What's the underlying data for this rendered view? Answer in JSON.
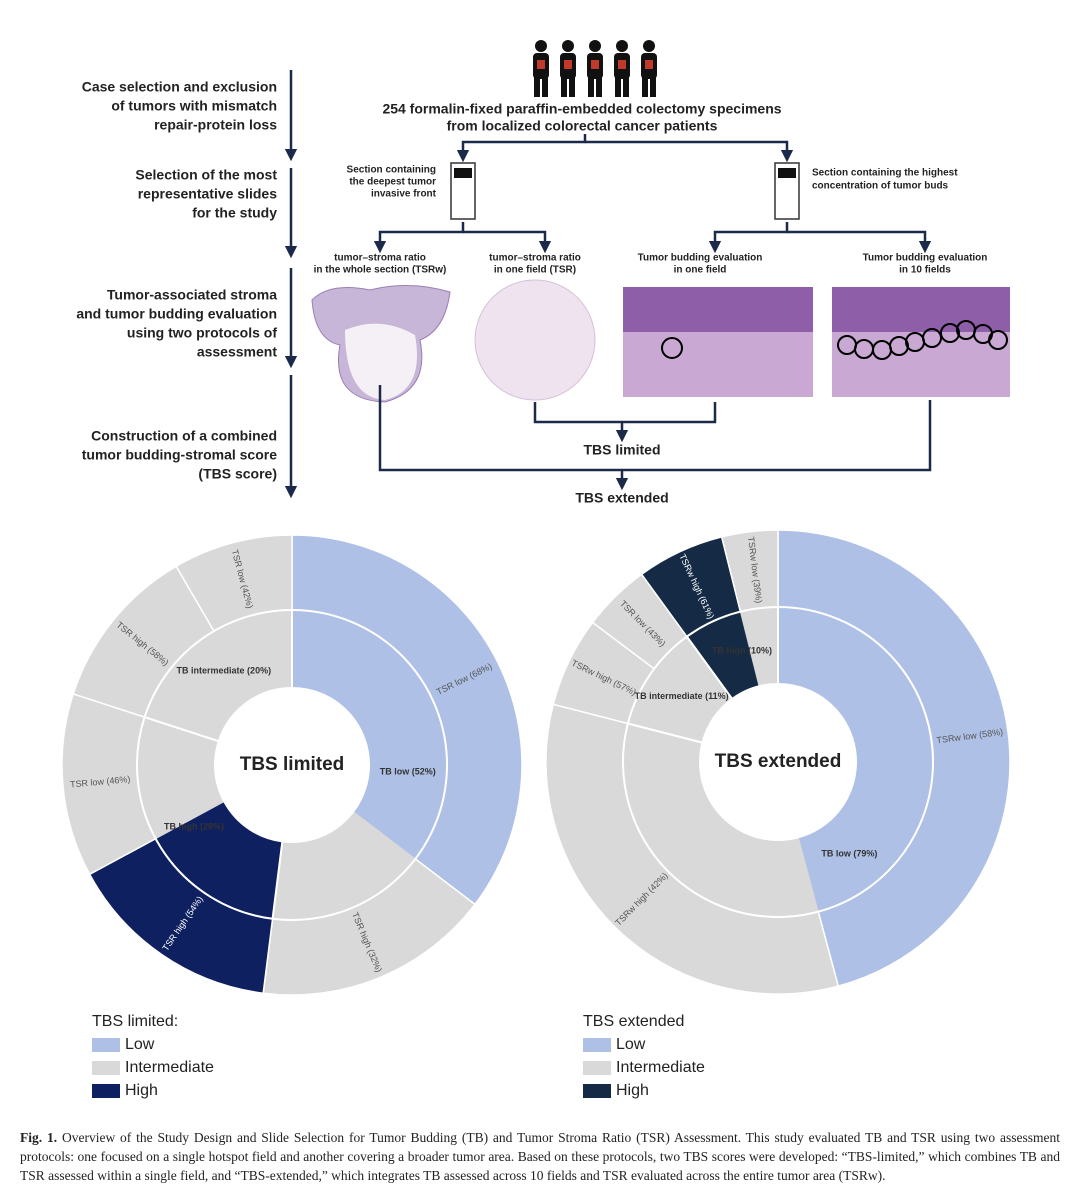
{
  "steps": [
    [
      "Case selection and exclusion",
      "of tumors with mismatch",
      "repair-protein loss"
    ],
    [
      "Selection of the most",
      "representative slides",
      "for the study"
    ],
    [
      "Tumor-associated stroma",
      "and tumor budding evaluation",
      "using two protocols of",
      "assessment"
    ],
    [
      "Construction of a combined",
      "tumor budding-stromal score",
      "(TBS score)"
    ]
  ],
  "cohort": [
    "254 formalin-fixed paraffin-embedded colectomy specimens",
    "from localized colorectal cancer patients"
  ],
  "sections": [
    [
      "Section containing",
      "the deepest tumor",
      "invasive front"
    ],
    [
      "Section containing the highest",
      "concentration of tumor buds"
    ]
  ],
  "evaluations": [
    [
      "tumor–stroma ratio",
      "in the whole section (TSRw)"
    ],
    [
      "tumor–stroma ratio",
      "in one field (TSR)"
    ],
    [
      "Tumor budding evaluation",
      "in one field"
    ],
    [
      "Tumor budding evaluation",
      "in 10 fields"
    ]
  ],
  "scores": [
    "TBS limited",
    "TBS extended"
  ],
  "chart_data": [
    {
      "type": "sunburst",
      "center_label": "TBS limited",
      "values": [
        52,
        28,
        20
      ],
      "value_labels": [
        "TB low (52%)",
        "TB high (28%)",
        "TB intermediate (20%)"
      ],
      "children": [
        {
          "values": [
            68,
            32
          ],
          "value_labels": [
            "TSR low (68%)",
            "TSR high (32%)"
          ],
          "colors": [
            "#aec0e6",
            "#d9d9d9"
          ]
        },
        {
          "values": [
            54,
            46
          ],
          "value_labels": [
            "TSR high (54%)",
            "TSR low (46%)"
          ],
          "colors": [
            "#0f2060",
            "#d9d9d9"
          ]
        },
        {
          "values": [
            58,
            42
          ],
          "value_labels": [
            "TSR high (58%)",
            "TSR low (42%)"
          ],
          "colors": [
            "#d9d9d9",
            "#d9d9d9"
          ]
        }
      ]
    },
    {
      "type": "sunburst",
      "center_label": "TBS extended",
      "values": [
        79,
        11,
        10
      ],
      "value_labels": [
        "TB low (79%)",
        "TB intermediate (11%)",
        "TB high (10%)"
      ],
      "children": [
        {
          "values": [
            58,
            42
          ],
          "value_labels": [
            "TSRw low (58%)",
            "TSRw high (42%)"
          ],
          "colors": [
            "#aec0e6",
            "#d9d9d9"
          ]
        },
        {
          "values": [
            57,
            43
          ],
          "value_labels": [
            "TSRw high (57%)",
            "TSR low (43%)"
          ],
          "colors": [
            "#d9d9d9",
            "#d9d9d9"
          ]
        },
        {
          "values": [
            61,
            39
          ],
          "value_labels": [
            "TSRw high (61%)",
            "TSRw low (39%)"
          ],
          "colors": [
            "#142a45",
            "#d9d9d9"
          ]
        }
      ]
    }
  ],
  "legends": [
    {
      "title": "TBS limited:",
      "items": [
        "Low",
        "Intermediate",
        "High"
      ],
      "colors": [
        "#aec0e6",
        "#d9d9d9",
        "#0f2060"
      ]
    },
    {
      "title": "TBS extended",
      "items": [
        "Low",
        "Intermediate",
        "High"
      ],
      "colors": [
        "#aec0e6",
        "#d9d9d9",
        "#142a45"
      ]
    }
  ],
  "caption": {
    "label": "Fig. 1.",
    "text": "Overview of the Study Design and Slide Selection for Tumor Budding (TB) and Tumor Stroma Ratio (TSR) Assessment. This study evaluated TB and TSR using two assessment protocols: one focused on a single hotspot field and another covering a broader tumor area. Based on these protocols, two TBS scores were developed: “TBS-limited,” which combines TB and TSR assessed within a single field, and “TBS-extended,” which integrates TB assessed across 10 fields and TSR evaluated across the entire tumor area (TSRw)."
  }
}
